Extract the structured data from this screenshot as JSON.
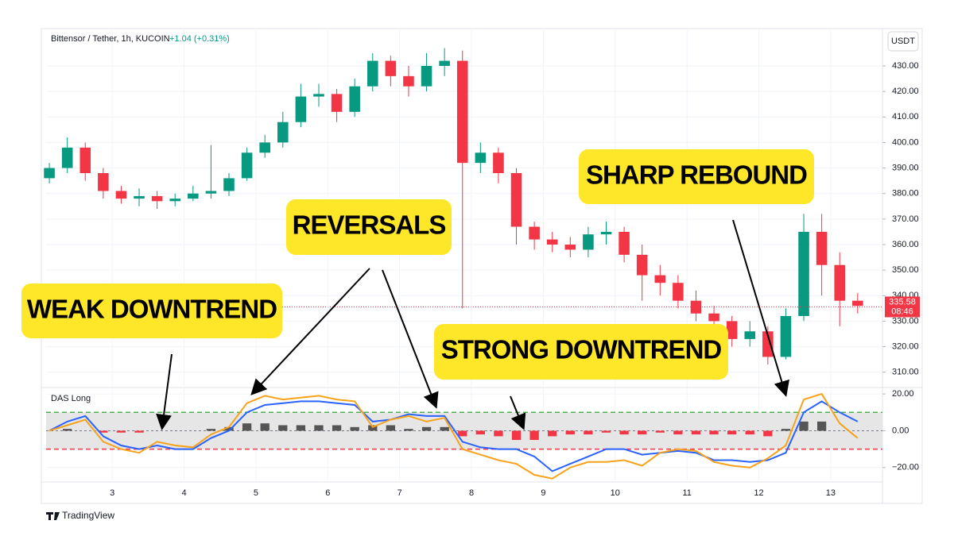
{
  "chart_data": [
    {
      "type": "candlestick",
      "title": "Bittensor / Tether, 1h, KUCOIN",
      "subtitle": "+1.04 (+0.31%)",
      "currency": "USDT",
      "x": [
        2.125,
        2.375,
        2.625,
        2.875,
        3.125,
        3.375,
        3.625,
        3.875,
        4.125,
        4.375,
        4.625,
        4.875,
        5.125,
        5.375,
        5.625,
        5.875,
        6.125,
        6.375,
        6.625,
        6.875,
        7.125,
        7.375,
        7.625,
        7.875,
        8.125,
        8.375,
        8.625,
        8.875,
        9.125,
        9.375,
        9.625,
        9.875,
        10.125,
        10.375,
        10.625,
        10.875,
        11.125,
        11.375,
        11.625,
        11.875,
        12.125,
        12.375,
        12.625,
        12.875,
        13.125,
        13.375
      ],
      "open": [
        386,
        390,
        398,
        388,
        381,
        378,
        379,
        377,
        378,
        380,
        381,
        386,
        396,
        400,
        408,
        418,
        419,
        412,
        422,
        432,
        426,
        422,
        430,
        432,
        392,
        396,
        388,
        367,
        362,
        360,
        358,
        364,
        365,
        356,
        348,
        345,
        338,
        333,
        330,
        323,
        326,
        316,
        332,
        365,
        352,
        338
      ],
      "high": [
        392,
        402,
        400,
        390,
        383,
        382,
        381,
        380,
        383,
        399,
        388,
        398,
        403,
        412,
        423,
        423,
        421,
        425,
        435,
        434,
        430,
        435,
        437,
        436,
        400,
        398,
        390,
        369,
        365,
        363,
        367,
        369,
        367,
        360,
        352,
        348,
        342,
        336,
        332,
        330,
        328,
        335,
        372,
        372,
        357,
        341
      ],
      "low": [
        384,
        388,
        385,
        378,
        376,
        375,
        374,
        375,
        377,
        378,
        379,
        385,
        394,
        398,
        406,
        414,
        408,
        410,
        420,
        422,
        418,
        420,
        426,
        335,
        388,
        384,
        360,
        358,
        357,
        355,
        355,
        360,
        353,
        338,
        340,
        335,
        330,
        326,
        320,
        320,
        313,
        315,
        330,
        340,
        328,
        333
      ],
      "close": [
        390,
        398,
        388,
        381,
        378,
        379,
        377,
        378,
        380,
        381,
        386,
        396,
        400,
        408,
        418,
        419,
        412,
        422,
        432,
        426,
        422,
        430,
        432,
        392,
        396,
        388,
        367,
        362,
        360,
        358,
        364,
        365,
        356,
        348,
        345,
        338,
        333,
        330,
        323,
        326,
        316,
        332,
        365,
        352,
        338,
        336
      ],
      "up_color": "#089981",
      "down_color": "#f23645",
      "xlim": [
        2.08,
        13.72
      ],
      "ylim": [
        304,
        444
      ],
      "yticks": [
        {
          "value": 310,
          "label": "310.00"
        },
        {
          "value": 320,
          "label": "320.00"
        },
        {
          "value": 330,
          "label": "330.00"
        },
        {
          "value": 340,
          "label": "340.00"
        },
        {
          "value": 350,
          "label": "350.00"
        },
        {
          "value": 360,
          "label": "360.00"
        },
        {
          "value": 370,
          "label": "370.00"
        },
        {
          "value": 380,
          "label": "380.00"
        },
        {
          "value": 390,
          "label": "390.00"
        },
        {
          "value": 400,
          "label": "400.00"
        },
        {
          "value": 410,
          "label": "410.00"
        },
        {
          "value": 420,
          "label": "420.00"
        },
        {
          "value": 430,
          "label": "430.00"
        }
      ],
      "last_price": 335.58,
      "countdown": "08:46"
    },
    {
      "type": "line",
      "title": "DAS Long",
      "x": [
        2.125,
        2.375,
        2.625,
        2.875,
        3.125,
        3.375,
        3.625,
        3.875,
        4.125,
        4.375,
        4.625,
        4.875,
        5.125,
        5.375,
        5.625,
        5.875,
        6.125,
        6.375,
        6.625,
        6.875,
        7.125,
        7.375,
        7.625,
        7.875,
        8.125,
        8.375,
        8.625,
        8.875,
        9.125,
        9.375,
        9.625,
        9.875,
        10.125,
        10.375,
        10.625,
        10.875,
        11.125,
        11.375,
        11.625,
        11.875,
        12.125,
        12.375,
        12.625,
        12.875,
        13.125,
        13.375
      ],
      "series": [
        {
          "color": "#2962ff",
          "values": [
            0,
            5,
            8,
            -3,
            -8,
            -10,
            -8,
            -10,
            -10,
            -4,
            0,
            10,
            14,
            15,
            16,
            16,
            15,
            14,
            5,
            6,
            9,
            8,
            8,
            -6,
            -9,
            -10,
            -10,
            -14,
            -22,
            -18,
            -14,
            -10,
            -10,
            -13,
            -12,
            -11,
            -12,
            -16,
            -16,
            -17,
            -16,
            -12,
            10,
            16,
            10,
            5
          ]
        },
        {
          "color": "#f7a21b",
          "values": [
            0,
            3,
            6,
            -6,
            -10,
            -12,
            -6,
            -8,
            -9,
            -2,
            2,
            15,
            19,
            17,
            18,
            19,
            17,
            16,
            2,
            6,
            8,
            5,
            7,
            -10,
            -13,
            -16,
            -18,
            -24,
            -26,
            -20,
            -17,
            -17,
            -16,
            -19,
            -12,
            -10,
            -11,
            -17,
            -19,
            -20,
            -15,
            -8,
            17,
            20,
            4,
            -4
          ]
        }
      ],
      "histogram": {
        "values": [
          0,
          1,
          0,
          -1,
          -1,
          -1,
          0,
          0,
          0,
          1,
          2,
          4,
          4,
          3,
          3,
          3,
          3,
          2,
          3,
          3,
          1,
          2,
          2,
          -3,
          -2,
          -3,
          -5,
          -5,
          -3,
          -2,
          -2,
          -1,
          -2,
          -2,
          -1,
          -2,
          -2,
          -2,
          -2,
          -2,
          -3,
          1,
          5,
          5,
          0,
          0
        ],
        "up_color": "#555555",
        "down_color": "#f23645"
      },
      "levels": [
        {
          "value": 10,
          "color": "#4caf50"
        },
        {
          "value": -10,
          "color": "#f23645"
        }
      ],
      "band_color": "#e6e6e6",
      "xlim": [
        2.08,
        13.72
      ],
      "ylim": [
        -27,
        23.5
      ],
      "yticks": [
        {
          "value": 20,
          "label": "20.00"
        },
        {
          "value": 0,
          "label": "0.00"
        },
        {
          "value": -20,
          "label": "−20.00"
        }
      ],
      "xticks": [
        3,
        4,
        5,
        6,
        7,
        8,
        9,
        10,
        11,
        12,
        13
      ]
    }
  ],
  "annotations": [
    "WEAK DOWNTREND",
    "REVERSALS",
    "STRONG DOWNTREND",
    "SHARP REBOUND"
  ],
  "brand": "TradingView"
}
